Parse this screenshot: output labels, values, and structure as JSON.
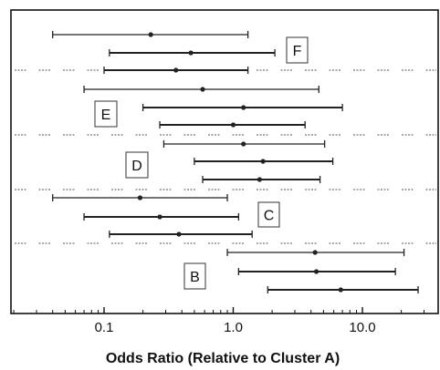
{
  "chart_data": {
    "type": "scatter",
    "subtype": "forest-plot",
    "xlabel": "Odds Ratio (Relative to Cluster A)",
    "xscale": "log",
    "xlim": [
      0.02,
      40
    ],
    "xticks": [
      {
        "value": 0.1,
        "label": "0.1"
      },
      {
        "value": 1,
        "label": "1.0"
      },
      {
        "value": 10,
        "label": "10.0"
      }
    ],
    "grid": false,
    "legend": "none",
    "colors": {
      "line": "#222222",
      "separator": "#777777",
      "frame": "#111111"
    },
    "groups": [
      {
        "label": "F",
        "rows": [
          {
            "estimate": 0.23,
            "lower": 0.04,
            "upper": 1.3
          },
          {
            "estimate": 0.47,
            "lower": 0.11,
            "upper": 2.1
          },
          {
            "estimate": 0.36,
            "lower": 0.1,
            "upper": 1.3
          }
        ]
      },
      {
        "label": "E",
        "rows": [
          {
            "estimate": 0.58,
            "lower": 0.07,
            "upper": 4.6
          },
          {
            "estimate": 1.2,
            "lower": 0.2,
            "upper": 7.0
          },
          {
            "estimate": 1.0,
            "lower": 0.27,
            "upper": 3.6
          }
        ]
      },
      {
        "label": "D",
        "rows": [
          {
            "estimate": 1.2,
            "lower": 0.29,
            "upper": 5.1
          },
          {
            "estimate": 1.7,
            "lower": 0.5,
            "upper": 5.9
          },
          {
            "estimate": 1.6,
            "lower": 0.58,
            "upper": 4.7
          }
        ]
      },
      {
        "label": "C",
        "rows": [
          {
            "estimate": 0.19,
            "lower": 0.04,
            "upper": 0.9
          },
          {
            "estimate": 0.27,
            "lower": 0.07,
            "upper": 1.1
          },
          {
            "estimate": 0.38,
            "lower": 0.11,
            "upper": 1.4
          }
        ]
      },
      {
        "label": "B",
        "rows": [
          {
            "estimate": 4.3,
            "lower": 0.9,
            "upper": 21
          },
          {
            "estimate": 4.4,
            "lower": 1.1,
            "upper": 18
          },
          {
            "estimate": 6.8,
            "lower": 1.85,
            "upper": 27
          }
        ]
      }
    ]
  }
}
